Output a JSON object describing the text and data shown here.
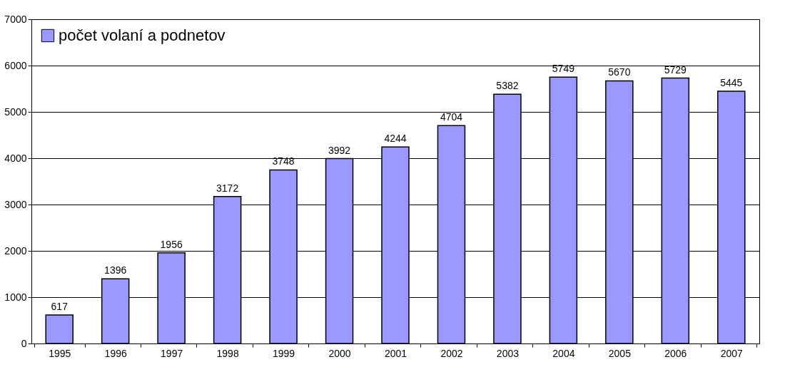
{
  "chart_data": {
    "type": "bar",
    "categories": [
      "1995",
      "1996",
      "1997",
      "1998",
      "1999",
      "2000",
      "2001",
      "2002",
      "2003",
      "2004",
      "2005",
      "2006",
      "2007"
    ],
    "series": [
      {
        "name": "počet volaní a podnetov",
        "color": "#9999ff",
        "values": [
          617,
          1396,
          1956,
          3172,
          3748,
          3992,
          4244,
          4704,
          5382,
          5749,
          5670,
          5729,
          5445
        ]
      }
    ],
    "ylim": [
      0,
      7000
    ],
    "yticks": [
      0,
      1000,
      2000,
      3000,
      4000,
      5000,
      6000,
      7000
    ],
    "grid": "y",
    "legend": "top left",
    "data_labels": true
  }
}
